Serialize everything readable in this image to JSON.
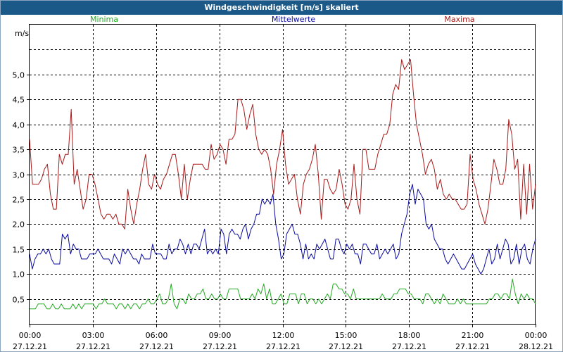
{
  "chart_data": {
    "type": "line",
    "title": "Windgeschwindigkeit [m/s] skaliert",
    "ylabel": "m/s",
    "xlabel": "",
    "ylim": [
      0,
      6
    ],
    "xlim_hours": [
      0,
      24
    ],
    "grid": true,
    "y_ticks": [
      {
        "v": 0.5,
        "label": "0,5"
      },
      {
        "v": 1.0,
        "label": "1,0"
      },
      {
        "v": 1.5,
        "label": "1,5"
      },
      {
        "v": 2.0,
        "label": "2,0"
      },
      {
        "v": 2.5,
        "label": "2,5"
      },
      {
        "v": 3.0,
        "label": "3,0"
      },
      {
        "v": 3.5,
        "label": "3,5"
      },
      {
        "v": 4.0,
        "label": "4,0"
      },
      {
        "v": 4.5,
        "label": "4,5"
      },
      {
        "v": 5.0,
        "label": "5,0"
      }
    ],
    "x_ticks": [
      {
        "h": 0,
        "time": "00:00",
        "date": "27.12.21"
      },
      {
        "h": 3,
        "time": "03:00",
        "date": "27.12.21"
      },
      {
        "h": 6,
        "time": "06:00",
        "date": "27.12.21"
      },
      {
        "h": 9,
        "time": "09:00",
        "date": "27.12.21"
      },
      {
        "h": 12,
        "time": "12:00",
        "date": "27.12.21"
      },
      {
        "h": 15,
        "time": "15:00",
        "date": "27.12.21"
      },
      {
        "h": 18,
        "time": "18:00",
        "date": "27.12.21"
      },
      {
        "h": 21,
        "time": "21:00",
        "date": "27.12.21"
      },
      {
        "h": 24,
        "time": "00:00",
        "date": "28.12.21"
      }
    ],
    "series": [
      {
        "name": "Minima",
        "color": "#22aa22",
        "legend_pos": "left",
        "values": [
          0.3,
          0.3,
          0.3,
          0.4,
          0.4,
          0.4,
          0.3,
          0.3,
          0.4,
          0.3,
          0.3,
          0.4,
          0.3,
          0.3,
          0.3,
          0.4,
          0.3,
          0.4,
          0.3,
          0.4,
          0.4,
          0.4,
          0.4,
          0.3,
          0.4,
          0.4,
          0.5,
          0.4,
          0.4,
          0.4,
          0.3,
          0.4,
          0.4,
          0.3,
          0.4,
          0.3,
          0.4,
          0.4,
          0.3,
          0.4,
          0.4,
          0.5,
          0.4,
          0.4,
          0.5,
          0.6,
          0.4,
          0.4,
          0.5,
          0.8,
          0.4,
          0.3,
          0.5,
          0.5,
          0.4,
          0.6,
          0.5,
          0.5,
          0.6,
          0.6,
          0.7,
          0.5,
          0.5,
          0.6,
          0.5,
          0.5,
          0.6,
          0.5,
          0.5,
          0.7,
          0.7,
          0.7,
          0.7,
          0.5,
          0.5,
          0.5,
          0.5,
          0.6,
          0.5,
          0.7,
          0.6,
          0.8,
          0.5,
          0.7,
          0.4,
          0.4,
          0.5,
          0.6,
          0.4,
          0.4,
          0.6,
          0.6,
          0.6,
          0.4,
          0.6,
          0.6,
          0.4,
          0.5,
          0.5,
          0.4,
          0.5,
          0.4,
          0.5,
          0.6,
          0.5,
          0.8,
          0.8,
          0.7,
          0.7,
          0.6,
          0.6,
          0.5,
          0.7,
          0.5,
          0.5,
          0.5,
          0.5,
          0.5,
          0.5,
          0.5,
          0.5,
          0.5,
          0.6,
          0.5,
          0.5,
          0.5,
          0.6,
          0.6,
          0.7,
          0.7,
          0.7,
          0.6,
          0.6,
          0.5,
          0.5,
          0.5,
          0.4,
          0.6,
          0.6,
          0.5,
          0.4,
          0.5,
          0.4,
          0.6,
          0.5,
          0.4,
          0.4,
          0.4,
          0.5,
          0.4,
          0.5,
          0.4,
          0.4,
          0.4,
          0.4,
          0.4,
          0.4,
          0.4,
          0.4,
          0.5,
          0.5,
          0.6,
          0.6,
          0.5,
          0.6,
          0.6,
          0.5,
          0.9,
          0.6,
          0.4,
          0.6,
          0.5,
          0.6,
          0.5,
          0.5,
          0.4
        ]
      },
      {
        "name": "Mittelwerte",
        "color": "#0a0aa0",
        "legend_pos": "center",
        "values": [
          1.4,
          1.1,
          1.3,
          1.4,
          1.4,
          1.5,
          1.4,
          1.5,
          1.3,
          1.2,
          1.2,
          1.2,
          1.8,
          1.7,
          1.8,
          1.4,
          1.6,
          1.5,
          1.5,
          1.3,
          1.3,
          1.3,
          1.4,
          1.4,
          1.4,
          1.5,
          1.4,
          1.3,
          1.3,
          1.3,
          1.2,
          1.4,
          1.3,
          1.2,
          1.5,
          1.4,
          1.5,
          1.4,
          1.3,
          1.3,
          1.2,
          1.4,
          1.3,
          1.3,
          1.3,
          1.6,
          1.4,
          1.4,
          1.4,
          1.3,
          1.3,
          1.6,
          1.4,
          1.5,
          1.5,
          1.7,
          1.6,
          1.4,
          1.6,
          1.4,
          1.6,
          1.6,
          1.5,
          1.7,
          1.9,
          1.4,
          1.5,
          1.4,
          1.5,
          1.4,
          1.9,
          1.8,
          1.4,
          1.8,
          1.9,
          1.8,
          1.8,
          1.7,
          1.9,
          2.0,
          1.7,
          1.9,
          2.0,
          2.2,
          2.2,
          2.5,
          2.4,
          2.5,
          2.4,
          2.6,
          2.0,
          1.7,
          1.3,
          1.4,
          1.8,
          1.9,
          2.0,
          1.8,
          1.8,
          1.6,
          1.3,
          1.6,
          1.3,
          1.4,
          1.3,
          1.6,
          1.5,
          1.6,
          1.7,
          1.5,
          1.3,
          1.3,
          1.7,
          1.7,
          1.5,
          1.4,
          1.6,
          1.5,
          1.6,
          1.4,
          1.4,
          1.2,
          1.6,
          1.6,
          1.5,
          1.4,
          1.4,
          1.6,
          1.3,
          1.4,
          1.5,
          1.4,
          1.5,
          1.6,
          1.3,
          1.4,
          1.8,
          2.0,
          2.2,
          2.6,
          2.8,
          2.4,
          2.7,
          2.6,
          2.5,
          2.0,
          1.9,
          2.0,
          1.7,
          1.6,
          1.5,
          1.5,
          1.3,
          1.2,
          1.3,
          1.4,
          1.3,
          1.2,
          1.1,
          1.1,
          1.2,
          1.3,
          1.4,
          1.2,
          1.1,
          1.0,
          1.1,
          1.3,
          1.5,
          1.2,
          1.3,
          1.6,
          1.3,
          1.5,
          1.7,
          1.6,
          1.2,
          1.3,
          1.6,
          1.2,
          1.5,
          1.6,
          1.3,
          1.2,
          1.5,
          1.7
        ]
      },
      {
        "name": "Maxima",
        "color": "#aa1818",
        "legend_pos": "right",
        "values": [
          3.7,
          2.8,
          2.8,
          2.8,
          2.9,
          3.1,
          3.2,
          2.6,
          2.3,
          2.3,
          3.4,
          3.2,
          3.4,
          3.4,
          4.3,
          2.8,
          3.1,
          2.7,
          2.3,
          2.5,
          3.0,
          3.0,
          2.8,
          2.5,
          2.2,
          2.1,
          2.2,
          2.2,
          2.1,
          2.2,
          2.0,
          2.0,
          1.9,
          2.7,
          2.3,
          2.0,
          2.4,
          2.7,
          3.1,
          3.4,
          2.8,
          2.7,
          3.0,
          2.8,
          2.7,
          2.9,
          3.0,
          3.2,
          3.4,
          3.4,
          3.0,
          2.5,
          3.2,
          2.5,
          2.9,
          3.2,
          3.2,
          3.2,
          3.2,
          3.1,
          3.1,
          3.6,
          3.3,
          3.4,
          3.6,
          3.5,
          3.2,
          3.7,
          3.7,
          3.8,
          4.5,
          4.5,
          4.3,
          3.9,
          4.2,
          4.4,
          3.8,
          3.5,
          3.4,
          3.5,
          3.4,
          3.1,
          2.6,
          3.2,
          3.5,
          3.9,
          3.2,
          2.8,
          2.9,
          3.0,
          2.5,
          2.2,
          2.8,
          3.0,
          3.1,
          3.3,
          3.6,
          3.0,
          2.1,
          2.9,
          2.9,
          2.7,
          2.6,
          2.7,
          3.1,
          2.8,
          2.4,
          2.3,
          2.5,
          3.2,
          2.5,
          2.2,
          3.5,
          3.5,
          3.1,
          3.1,
          3.1,
          3.4,
          3.6,
          3.8,
          3.8,
          4.0,
          4.6,
          4.8,
          4.7,
          5.3,
          5.1,
          5.2,
          5.3,
          4.6,
          4.0,
          3.7,
          3.4,
          3.0,
          3.2,
          3.3,
          3.1,
          2.7,
          2.9,
          2.6,
          2.5,
          2.6,
          2.5,
          2.5,
          2.4,
          2.3,
          2.3,
          2.4,
          3.4,
          2.9,
          2.7,
          2.4,
          2.2,
          2.0,
          2.3,
          2.8,
          3.3,
          3.1,
          2.8,
          2.8,
          3.1,
          4.1,
          3.8,
          3.1,
          3.3,
          2.1,
          3.2,
          2.2,
          3.2,
          2.3,
          2.8
        ]
      }
    ]
  }
}
